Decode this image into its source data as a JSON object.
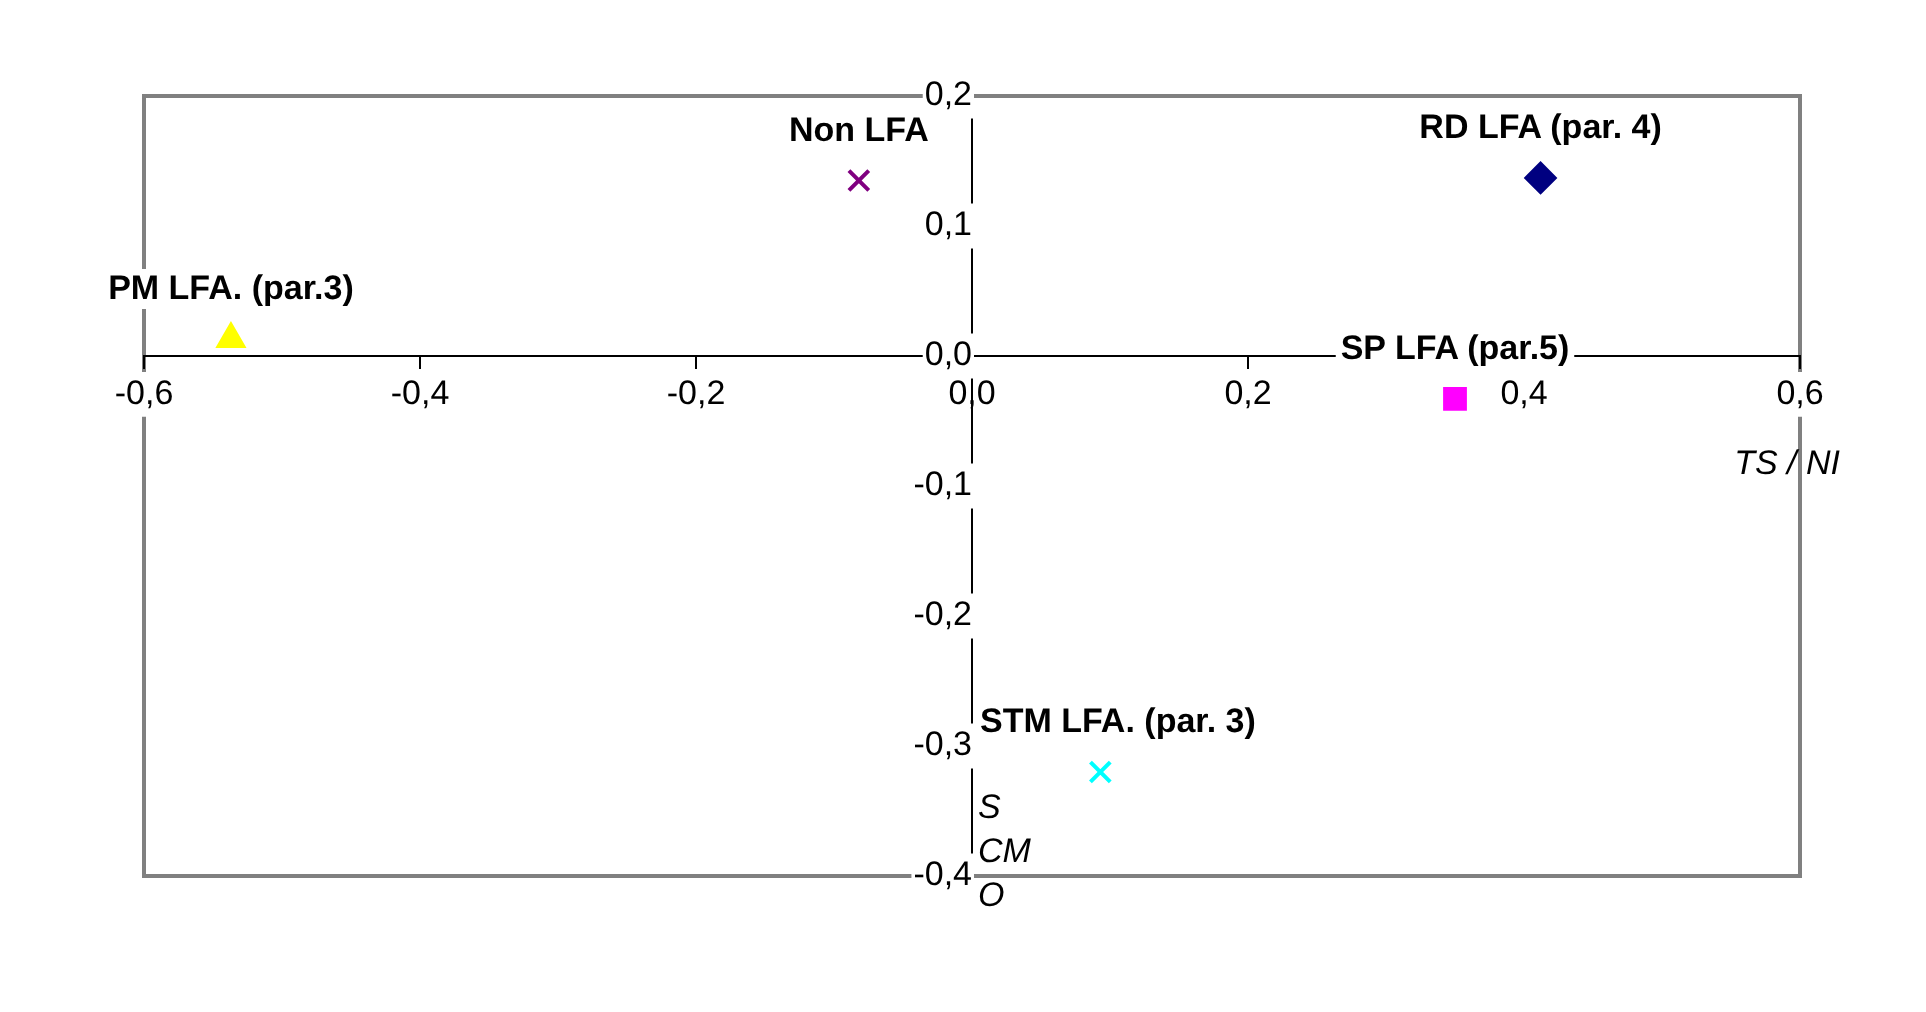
{
  "chart_data": {
    "type": "scatter",
    "xlabel": "TS / NI",
    "ylabel": "S CM O",
    "xlim": [
      -0.6,
      0.6
    ],
    "xticks": [
      {
        "value": -0.6,
        "label": "-0,6"
      },
      {
        "value": -0.4,
        "label": "-0,4"
      },
      {
        "value": -0.2,
        "label": "-0,2"
      },
      {
        "value": 0,
        "label": "0,0"
      },
      {
        "value": 0.2,
        "label": "0,2"
      },
      {
        "value": 0.4,
        "label": "0,4"
      },
      {
        "value": 0.6,
        "label": "0,6"
      }
    ],
    "ylim": [
      -0.4,
      0.2
    ],
    "yticks": [
      {
        "value": -0.4,
        "label": "-0,4"
      },
      {
        "value": -0.3,
        "label": "-0,3"
      },
      {
        "value": -0.2,
        "label": "-0,2"
      },
      {
        "value": -0.1,
        "label": "-0,1"
      },
      {
        "value": 0,
        "label": "0,0"
      },
      {
        "value": 0.1,
        "label": "0,1"
      },
      {
        "value": 0.2,
        "label": "0,2"
      }
    ],
    "grid": false,
    "legend": false,
    "series": [
      {
        "name": "RD LFA (par. 4)",
        "color": "#000080",
        "marker": "diamond",
        "x": [
          0.412
        ],
        "values": [
          0.137
        ]
      },
      {
        "name": "SP LFA (par.5)",
        "color": "#ff00ff",
        "marker": "square",
        "x": [
          0.35
        ],
        "values": [
          -0.033
        ]
      },
      {
        "name": "PM LFA. (par.3)",
        "color": "#ffff00",
        "marker": "triangle",
        "x": [
          -0.537
        ],
        "values": [
          0.013
        ]
      },
      {
        "name": "Non LFA",
        "color": "#800080",
        "marker": "cross",
        "x": [
          -0.082
        ],
        "values": [
          0.135
        ]
      },
      {
        "name": "STM LFA. (par. 3)",
        "color": "#00ffff",
        "marker": "cross",
        "x": [
          0.093
        ],
        "values": [
          -0.32
        ]
      }
    ]
  }
}
